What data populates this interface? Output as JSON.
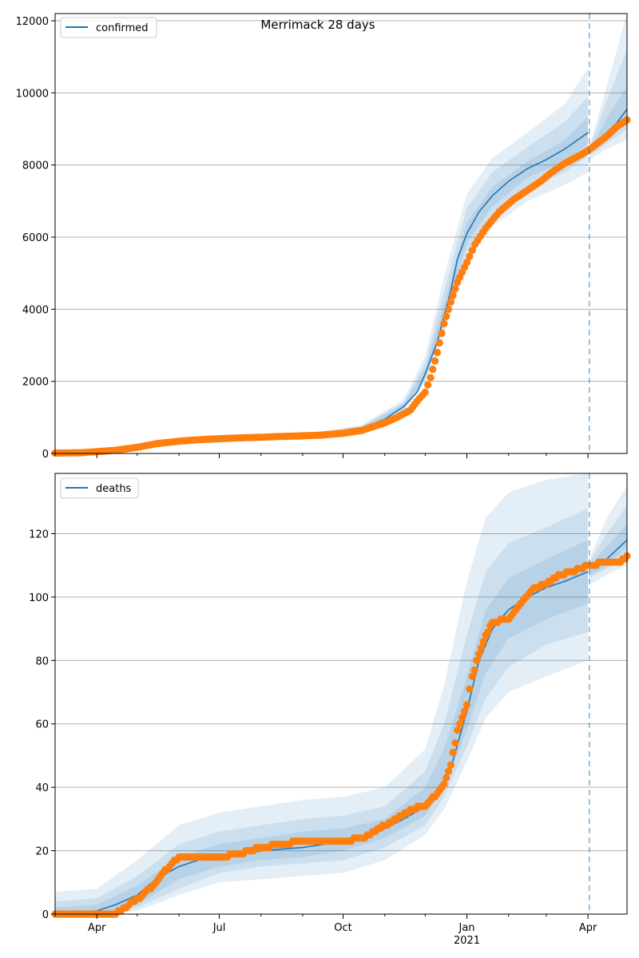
{
  "chart_data": [
    {
      "type": "line",
      "title": "Merrimack 28 days",
      "legend": {
        "label": "confirmed",
        "placement": "top-left"
      },
      "grid": "y",
      "x_range": [
        "2020-03-01",
        "2021-04-30"
      ],
      "ylim": [
        0,
        12200
      ],
      "y_ticks": [
        0,
        2000,
        4000,
        6000,
        8000,
        10000,
        12000
      ],
      "forecast_start": "2021-04-02",
      "colors": {
        "model": "#1f77b4",
        "observed": "#ff7f0e",
        "bands": "#1f77b4"
      },
      "model_line": {
        "x": [
          "2020-03-01",
          "2020-04-01",
          "2020-05-01",
          "2020-06-01",
          "2020-07-01",
          "2020-08-01",
          "2020-09-01",
          "2020-10-01",
          "2020-10-15",
          "2020-11-01",
          "2020-11-15",
          "2020-11-25",
          "2020-12-01",
          "2020-12-10",
          "2020-12-15",
          "2020-12-20",
          "2020-12-25",
          "2021-01-01",
          "2021-01-10",
          "2021-01-20",
          "2021-02-01",
          "2021-02-15",
          "2021-03-01",
          "2021-03-15",
          "2021-04-01",
          "2021-04-02",
          "2021-04-15",
          "2021-04-30"
        ],
        "y": [
          10,
          40,
          150,
          320,
          410,
          440,
          480,
          580,
          700,
          950,
          1300,
          1700,
          2200,
          3100,
          3800,
          4500,
          5400,
          6100,
          6700,
          7150,
          7550,
          7900,
          8150,
          8450,
          8900,
          8350,
          8800,
          9550
        ]
      },
      "bands": [
        {
          "x": [
            "2020-03-01",
            "2020-05-01",
            "2020-07-01",
            "2020-09-01",
            "2020-10-15",
            "2020-11-15",
            "2020-12-01",
            "2020-12-15",
            "2021-01-01",
            "2021-01-20",
            "2021-02-15",
            "2021-03-15",
            "2021-04-01",
            "2021-04-02",
            "2021-04-15",
            "2021-04-30"
          ],
          "lower": [
            0,
            120,
            370,
            440,
            630,
            1150,
            1950,
            3300,
            5300,
            6300,
            7000,
            7450,
            7800,
            8150,
            8450,
            8700
          ],
          "upper": [
            40,
            190,
            450,
            530,
            790,
            1500,
            2700,
            4900,
            7200,
            8200,
            8900,
            9700,
            10700,
            8500,
            10200,
            12200
          ]
        },
        {
          "x": [
            "2020-03-01",
            "2020-05-01",
            "2020-07-01",
            "2020-09-01",
            "2020-10-15",
            "2020-11-15",
            "2020-12-01",
            "2020-12-15",
            "2021-01-01",
            "2021-01-20",
            "2021-02-15",
            "2021-03-15",
            "2021-04-01",
            "2021-04-02",
            "2021-04-15",
            "2021-04-30"
          ],
          "lower": [
            5,
            130,
            385,
            455,
            650,
            1200,
            2050,
            3500,
            5600,
            6600,
            7350,
            7800,
            8250,
            8250,
            8600,
            9000
          ],
          "upper": [
            25,
            175,
            435,
            510,
            760,
            1420,
            2500,
            4500,
            6800,
            7800,
            8500,
            9200,
            9900,
            8450,
            9800,
            11200
          ]
        },
        {
          "x": [
            "2020-03-01",
            "2020-05-01",
            "2020-07-01",
            "2020-09-01",
            "2020-10-15",
            "2020-11-15",
            "2020-12-01",
            "2020-12-15",
            "2021-01-01",
            "2021-01-20",
            "2021-02-15",
            "2021-03-15",
            "2021-04-01",
            "2021-04-02",
            "2021-04-15",
            "2021-04-30"
          ],
          "lower": [
            8,
            140,
            395,
            465,
            670,
            1250,
            2120,
            3650,
            5850,
            6850,
            7650,
            8100,
            8600,
            8300,
            8700,
            9250
          ],
          "upper": [
            18,
            165,
            425,
            500,
            735,
            1370,
            2350,
            4150,
            6400,
            7400,
            8100,
            8700,
            9350,
            8400,
            9300,
            10200
          ]
        }
      ],
      "observed": {
        "x": [
          "2020-03-01",
          "2020-03-20",
          "2020-04-01",
          "2020-04-15",
          "2020-05-01",
          "2020-05-15",
          "2020-06-01",
          "2020-06-15",
          "2020-07-01",
          "2020-07-15",
          "2020-08-01",
          "2020-08-15",
          "2020-09-01",
          "2020-09-15",
          "2020-10-01",
          "2020-10-15",
          "2020-11-01",
          "2020-11-10",
          "2020-11-20",
          "2020-11-25",
          "2020-12-01",
          "2020-12-05",
          "2020-12-10",
          "2020-12-15",
          "2020-12-20",
          "2020-12-25",
          "2021-01-01",
          "2021-01-07",
          "2021-01-15",
          "2021-01-25",
          "2021-02-05",
          "2021-02-15",
          "2021-02-25",
          "2021-03-05",
          "2021-03-15",
          "2021-03-25",
          "2021-04-01",
          "2021-04-08",
          "2021-04-15",
          "2021-04-22",
          "2021-04-30"
        ],
        "y": [
          10,
          20,
          50,
          90,
          170,
          270,
          340,
          380,
          410,
          430,
          450,
          470,
          490,
          510,
          560,
          640,
          850,
          1000,
          1200,
          1450,
          1700,
          2100,
          2800,
          3600,
          4200,
          4750,
          5300,
          5800,
          6250,
          6700,
          7050,
          7300,
          7550,
          7800,
          8050,
          8250,
          8400,
          8600,
          8800,
          9050,
          9250
        ]
      }
    },
    {
      "type": "line",
      "legend": {
        "label": "deaths",
        "placement": "top-left"
      },
      "grid": "y",
      "x_range": [
        "2020-03-01",
        "2021-04-30"
      ],
      "ylim": [
        0,
        139
      ],
      "y_ticks": [
        0,
        20,
        40,
        60,
        80,
        100,
        120
      ],
      "x_ticks": [
        "Apr",
        "Jul",
        "Oct",
        "Jan",
        "Apr"
      ],
      "x_tick_dates": [
        "2020-04-01",
        "2020-07-01",
        "2020-10-01",
        "2021-01-01",
        "2021-04-01"
      ],
      "x_year_label": "2021",
      "forecast_start": "2021-04-02",
      "colors": {
        "model": "#1f77b4",
        "observed": "#ff7f0e",
        "bands": "#1f77b4"
      },
      "model_line": {
        "x": [
          "2020-03-01",
          "2020-04-01",
          "2020-04-15",
          "2020-05-01",
          "2020-05-15",
          "2020-06-01",
          "2020-06-15",
          "2020-07-01",
          "2020-08-01",
          "2020-09-01",
          "2020-10-01",
          "2020-10-15",
          "2020-11-01",
          "2020-11-15",
          "2020-12-01",
          "2020-12-10",
          "2020-12-20",
          "2021-01-01",
          "2021-01-10",
          "2021-01-20",
          "2021-02-01",
          "2021-02-15",
          "2021-03-01",
          "2021-03-15",
          "2021-04-01",
          "2021-04-15",
          "2021-04-30"
        ],
        "y": [
          0,
          1,
          3,
          6,
          11,
          15,
          17,
          18,
          20,
          21,
          23,
          24,
          27,
          30,
          34,
          38,
          46,
          64,
          80,
          90,
          96,
          100,
          103,
          105,
          108,
          112,
          118
        ]
      },
      "bands": [
        {
          "x": [
            "2020-03-01",
            "2020-04-01",
            "2020-05-01",
            "2020-06-01",
            "2020-07-01",
            "2020-08-01",
            "2020-09-01",
            "2020-10-01",
            "2020-11-01",
            "2020-12-01",
            "2020-12-15",
            "2021-01-01",
            "2021-01-15",
            "2021-02-01",
            "2021-03-01",
            "2021-04-01",
            "2021-04-02",
            "2021-04-15",
            "2021-04-30"
          ],
          "lower": [
            0,
            0,
            1,
            6,
            10,
            11,
            12,
            13,
            17,
            25,
            33,
            48,
            62,
            70,
            75,
            80,
            104,
            107,
            110
          ],
          "upper": [
            7,
            8,
            17,
            28,
            32,
            34,
            36,
            37,
            40,
            52,
            72,
            105,
            125,
            133,
            137,
            139,
            112,
            125,
            135
          ]
        },
        {
          "x": [
            "2020-03-01",
            "2020-04-01",
            "2020-05-01",
            "2020-06-01",
            "2020-07-01",
            "2020-08-01",
            "2020-09-01",
            "2020-10-01",
            "2020-11-01",
            "2020-12-01",
            "2020-12-15",
            "2021-01-01",
            "2021-01-15",
            "2021-02-01",
            "2021-03-01",
            "2021-04-01",
            "2021-04-02",
            "2021-04-15",
            "2021-04-30"
          ],
          "lower": [
            0,
            0,
            2,
            8,
            13,
            15,
            16,
            17,
            21,
            28,
            37,
            53,
            68,
            78,
            85,
            89,
            106,
            109,
            113
          ],
          "upper": [
            4,
            5,
            12,
            22,
            26,
            28,
            30,
            31,
            34,
            45,
            60,
            88,
            108,
            117,
            122,
            128,
            111,
            120,
            129
          ]
        },
        {
          "x": [
            "2020-03-01",
            "2020-04-01",
            "2020-05-01",
            "2020-06-01",
            "2020-07-01",
            "2020-08-01",
            "2020-09-01",
            "2020-10-01",
            "2020-11-01",
            "2020-12-01",
            "2020-12-15",
            "2021-01-01",
            "2021-01-15",
            "2021-02-01",
            "2021-03-01",
            "2021-04-01",
            "2021-04-02",
            "2021-04-15",
            "2021-04-30"
          ],
          "lower": [
            0,
            0,
            3,
            11,
            15,
            17,
            18,
            20,
            24,
            31,
            40,
            58,
            76,
            87,
            93,
            98,
            107,
            110,
            116
          ],
          "upper": [
            2,
            3,
            9,
            18,
            22,
            24,
            26,
            27,
            30,
            40,
            52,
            75,
            96,
            106,
            112,
            118,
            110,
            116,
            123
          ]
        }
      ],
      "observed": {
        "x": [
          "2020-03-01",
          "2020-04-15",
          "2020-04-25",
          "2020-05-05",
          "2020-05-15",
          "2020-05-20",
          "2020-05-25",
          "2020-06-01",
          "2020-06-10",
          "2020-06-20",
          "2020-07-01",
          "2020-07-15",
          "2020-08-01",
          "2020-08-15",
          "2020-09-01",
          "2020-09-15",
          "2020-10-01",
          "2020-10-15",
          "2020-10-25",
          "2020-11-01",
          "2020-11-10",
          "2020-11-20",
          "2020-12-01",
          "2020-12-05",
          "2020-12-10",
          "2020-12-15",
          "2020-12-20",
          "2020-12-25",
          "2021-01-01",
          "2021-01-05",
          "2021-01-10",
          "2021-01-15",
          "2021-01-20",
          "2021-02-01",
          "2021-02-10",
          "2021-02-20",
          "2021-03-01",
          "2021-03-10",
          "2021-03-20",
          "2021-04-01",
          "2021-04-15",
          "2021-04-25",
          "2021-04-30"
        ],
        "y": [
          0,
          0,
          3,
          6,
          10,
          13,
          15,
          18,
          18,
          18,
          18,
          19,
          21,
          22,
          23,
          23,
          23,
          24,
          26,
          28,
          30,
          33,
          34,
          36,
          38,
          41,
          47,
          58,
          66,
          75,
          82,
          88,
          92,
          93,
          98,
          103,
          104,
          107,
          108,
          110,
          111,
          111,
          113
        ]
      }
    }
  ]
}
